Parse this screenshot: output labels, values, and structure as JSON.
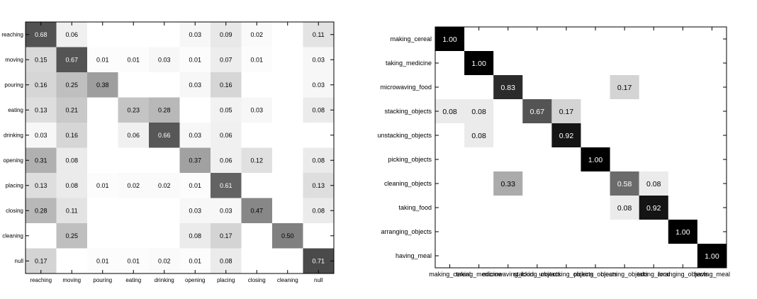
{
  "colors": {
    "background": "#ffffff",
    "dark_cell": "#000000",
    "frame": "#000000"
  },
  "chart_data": [
    {
      "type": "heatmap",
      "title": "",
      "xlabel": "",
      "ylabel": "",
      "rows": [
        "reaching",
        "moving",
        "pouring",
        "eating",
        "drinking",
        "opening",
        "placing",
        "closing",
        "cleaning",
        "null"
      ],
      "columns": [
        "reaching",
        "moving",
        "pouring",
        "eating",
        "drinking",
        "opening",
        "placing",
        "closing",
        "cleaning",
        "null"
      ],
      "values": [
        [
          "0.68",
          "0.06",
          "",
          "",
          "",
          "0.03",
          "0.09",
          "0.02",
          "",
          "0.11"
        ],
        [
          "0.15",
          "0.67",
          "0.01",
          "0.01",
          "0.03",
          "0.01",
          "0.07",
          "0.01",
          "",
          "0.03"
        ],
        [
          "0.16",
          "0.25",
          "0.38",
          "",
          "",
          "0.03",
          "0.16",
          "",
          "",
          "0.03"
        ],
        [
          "0.13",
          "0.21",
          "",
          "0.23",
          "0.28",
          "",
          "0.05",
          "0.03",
          "",
          "0.08"
        ],
        [
          "0.03",
          "0.16",
          "",
          "0.06",
          "0.66",
          "0.03",
          "0.06",
          "",
          "",
          ""
        ],
        [
          "0.31",
          "0.08",
          "",
          "",
          "",
          "0.37",
          "0.06",
          "0.12",
          "",
          "0.08"
        ],
        [
          "0.13",
          "0.08",
          "0.01",
          "0.02",
          "0.02",
          "0.01",
          "0.61",
          "",
          "",
          "0.13"
        ],
        [
          "0.28",
          "0.11",
          "",
          "",
          "",
          "0.03",
          "0.03",
          "0.47",
          "",
          "0.08"
        ],
        [
          "",
          "0.25",
          "",
          "",
          "",
          "0.08",
          "0.17",
          "",
          "0.50",
          ""
        ],
        [
          "0.17",
          "",
          "0.01",
          "0.01",
          "0.02",
          "0.01",
          "0.08",
          "",
          "",
          "0.71"
        ]
      ],
      "color_scale": "gray, higher value = darker"
    },
    {
      "type": "heatmap",
      "title": "",
      "xlabel": "",
      "ylabel": "",
      "rows": [
        "making_cereal",
        "taking_medicine",
        "microwaving_food",
        "stacking_objects",
        "unstacking_objects",
        "picking_objects",
        "cleaning_objects",
        "taking_food",
        "arranging_objects",
        "having_meal"
      ],
      "columns": [
        "making_cereal",
        "taking_medicine",
        "microwaving_food",
        "stacking_objects",
        "unstacking_objects",
        "picking_objects",
        "cleaning_objects",
        "taking_food",
        "arranging_objects",
        "having_meal"
      ],
      "values": [
        [
          "1.00",
          "",
          "",
          "",
          "",
          "",
          "",
          "",
          "",
          ""
        ],
        [
          "",
          "1.00",
          "",
          "",
          "",
          "",
          "",
          "",
          "",
          ""
        ],
        [
          "",
          "",
          "0.83",
          "",
          "",
          "",
          "0.17",
          "",
          "",
          ""
        ],
        [
          "0.08",
          "0.08",
          "",
          "0.67",
          "0.17",
          "",
          "",
          "",
          "",
          ""
        ],
        [
          "",
          "0.08",
          "",
          "",
          "0.92",
          "",
          "",
          "",
          "",
          ""
        ],
        [
          "",
          "",
          "",
          "",
          "",
          "1.00",
          "",
          "",
          "",
          ""
        ],
        [
          "",
          "",
          "0.33",
          "",
          "",
          "",
          "0.58",
          "0.08",
          "",
          ""
        ],
        [
          "",
          "",
          "",
          "",
          "",
          "",
          "0.08",
          "0.92",
          "",
          ""
        ],
        [
          "",
          "",
          "",
          "",
          "",
          "",
          "",
          "",
          "1.00",
          ""
        ],
        [
          "",
          "",
          "",
          "",
          "",
          "",
          "",
          "",
          "",
          "1.00"
        ]
      ],
      "color_scale": "gray, higher value = darker"
    }
  ]
}
